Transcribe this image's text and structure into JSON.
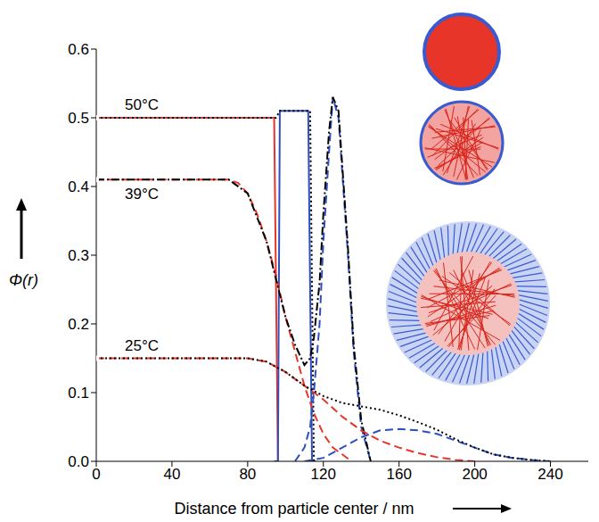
{
  "chart_data": {
    "type": "line",
    "x_label": "Distance from particle center / nm",
    "y_label": "Φ(r)",
    "xlim": [
      0,
      260
    ],
    "xticks": [
      0,
      40,
      80,
      120,
      160,
      200,
      240
    ],
    "ylim": [
      0,
      0.6
    ],
    "yticks": [
      {
        "value": 0,
        "label": "0.0"
      },
      0.1,
      0.2,
      0.3,
      0.4,
      0.5,
      0.6
    ],
    "grid": false,
    "series": [
      {
        "color": "#e8352a",
        "line_style": "solid",
        "annotation": "50°C",
        "x": [
          0,
          94,
          96
        ],
        "values": [
          0.5,
          0.5,
          0
        ]
      },
      {
        "color": "#2f4fc0",
        "line_style": "solid",
        "x": [
          94,
          96,
          97,
          112,
          114,
          116
        ],
        "values": [
          0,
          0,
          0.51,
          0.51,
          0,
          0
        ]
      },
      {
        "color": "#000000",
        "line_style": "dotted",
        "x": [
          0,
          95,
          97,
          113,
          115
        ],
        "values": [
          0.5,
          0.5,
          0.51,
          0.51,
          0
        ]
      },
      {
        "color": "#e8352a",
        "line_style": "dashed",
        "annotation": "39°C",
        "x": [
          0,
          70,
          75,
          80,
          85,
          90,
          95,
          100,
          105,
          110,
          115,
          120,
          125,
          130,
          135
        ],
        "values": [
          0.41,
          0.41,
          0.405,
          0.39,
          0.36,
          0.32,
          0.27,
          0.21,
          0.16,
          0.11,
          0.07,
          0.04,
          0.02,
          0.01,
          0
        ]
      },
      {
        "color": "#2f4fc0",
        "line_style": "dashed",
        "x": [
          105,
          110,
          113,
          115,
          118,
          120,
          123,
          125,
          128,
          130,
          133,
          136,
          140,
          145
        ],
        "values": [
          0,
          0.02,
          0.05,
          0.1,
          0.2,
          0.32,
          0.45,
          0.53,
          0.5,
          0.42,
          0.3,
          0.16,
          0.05,
          0
        ]
      },
      {
        "color": "#000000",
        "line_style": "dash-dot",
        "x": [
          0,
          70,
          80,
          90,
          100,
          105,
          110,
          113,
          115,
          118,
          120,
          123,
          125,
          128,
          130,
          133,
          136,
          140,
          145
        ],
        "values": [
          0.41,
          0.41,
          0.39,
          0.32,
          0.21,
          0.17,
          0.14,
          0.15,
          0.18,
          0.26,
          0.36,
          0.48,
          0.53,
          0.51,
          0.43,
          0.31,
          0.17,
          0.06,
          0
        ]
      },
      {
        "color": "#e8352a",
        "line_style": "dashed",
        "annotation": "25°C",
        "x": [
          0,
          80,
          90,
          100,
          110,
          120,
          130,
          140,
          150,
          160,
          170,
          180,
          190,
          200
        ],
        "values": [
          0.15,
          0.15,
          0.145,
          0.13,
          0.11,
          0.09,
          0.065,
          0.045,
          0.03,
          0.02,
          0.012,
          0.006,
          0.002,
          0
        ]
      },
      {
        "color": "#2f4fc0",
        "line_style": "dashed",
        "x": [
          110,
          120,
          130,
          140,
          150,
          160,
          170,
          180,
          190,
          200,
          210,
          220,
          230,
          240
        ],
        "values": [
          0,
          0.005,
          0.02,
          0.035,
          0.045,
          0.047,
          0.045,
          0.04,
          0.03,
          0.02,
          0.01,
          0.005,
          0.002,
          0
        ]
      },
      {
        "color": "#000000",
        "line_style": "dotted",
        "x": [
          0,
          80,
          90,
          100,
          110,
          120,
          130,
          140,
          150,
          160,
          170,
          180,
          190,
          200,
          210,
          220,
          230,
          240
        ],
        "values": [
          0.15,
          0.15,
          0.145,
          0.13,
          0.11,
          0.095,
          0.085,
          0.08,
          0.075,
          0.067,
          0.057,
          0.046,
          0.032,
          0.02,
          0.01,
          0.005,
          0.002,
          0
        ]
      }
    ]
  }
}
